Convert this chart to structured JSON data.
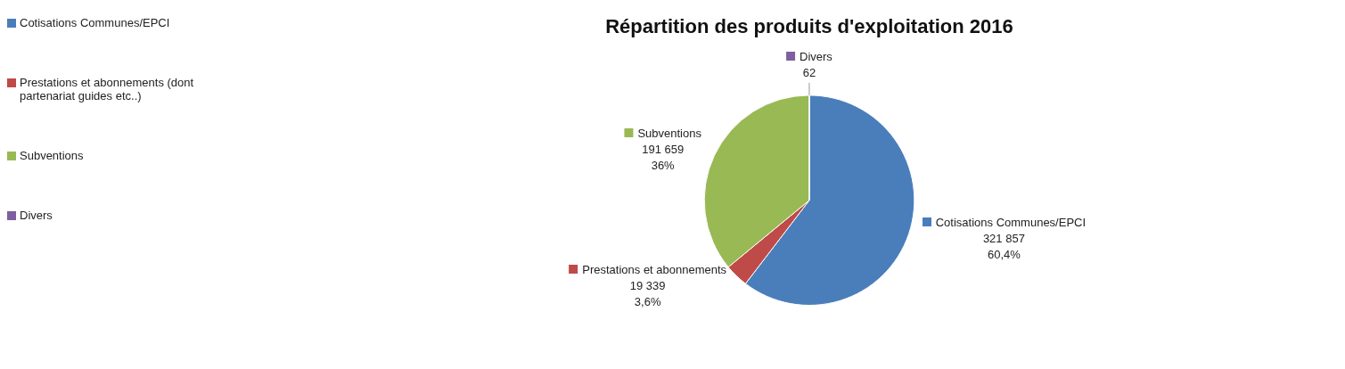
{
  "chart_data": {
    "type": "pie",
    "title": "Répartition des produits d'exploitation 2016",
    "categories": [
      "Cotisations Communes/EPCI",
      "Prestations et abonnements (dont partenariat guides etc..)",
      "Subventions",
      "Divers"
    ],
    "values": [
      321857,
      19339,
      191659,
      62
    ],
    "colors": [
      "#4a7ebb",
      "#be4b48",
      "#98b954",
      "#7d60a0"
    ],
    "value_labels": [
      "Cotisations Communes/EPCI\n321 857\n60,4%",
      "Prestations et abonnements\n19 339\n3,6%",
      "Subventions\n191 659\n36%",
      "Divers\n62"
    ],
    "legend": "left"
  }
}
